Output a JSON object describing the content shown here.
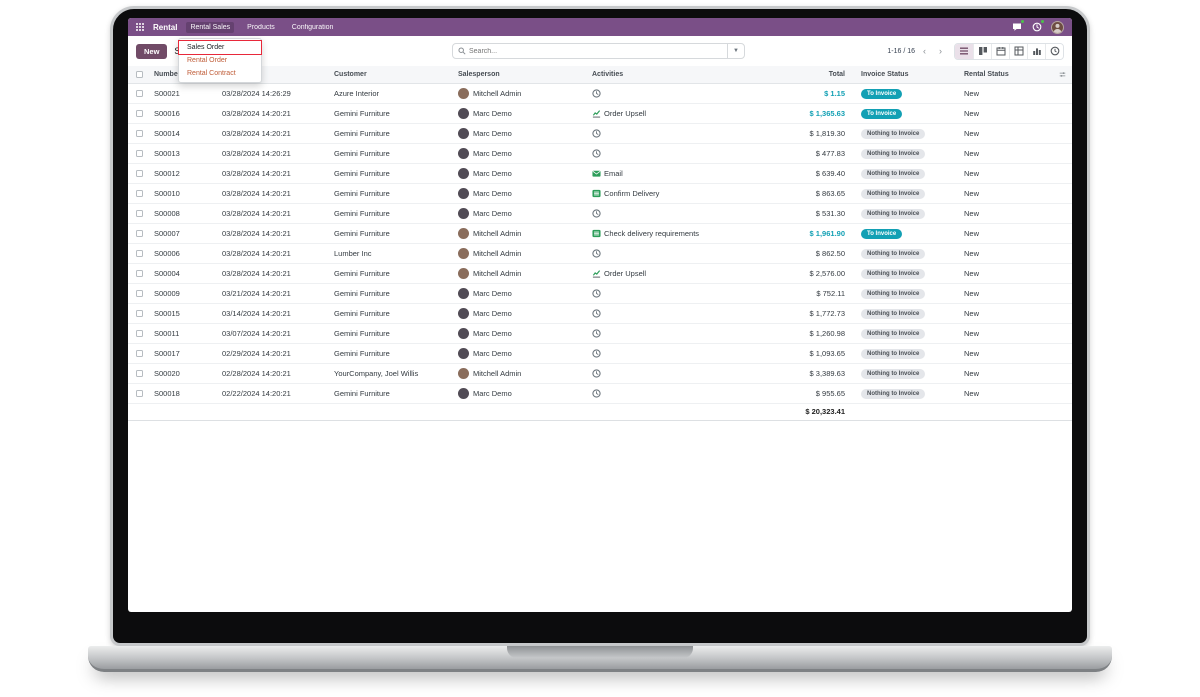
{
  "colors": {
    "menubar_bg": "#7a4f87",
    "accent": "#714b67",
    "to_invoice": "#12a0b4",
    "act_green": "#2e9e5b",
    "hl_red": "#e8283a"
  },
  "menubar": {
    "apps_menu_icon": "grid-icon",
    "app_name": "Rental",
    "menus": [
      {
        "label": "Rental Sales",
        "active": true
      },
      {
        "label": "Products"
      },
      {
        "label": "Configuration"
      }
    ],
    "systray": [
      {
        "icon": "messages-icon",
        "badge": ""
      },
      {
        "icon": "activities-icon",
        "badge": ""
      },
      {
        "icon": "user-avatar"
      }
    ]
  },
  "dropdown": {
    "items": [
      {
        "label": "Sales Order",
        "highlighted": true
      },
      {
        "label": "Rental Order"
      },
      {
        "label": "Rental Contract"
      }
    ]
  },
  "control_panel": {
    "new_button": "New",
    "breadcrumb": "Sales",
    "search": {
      "placeholder": "Search...",
      "icon": "search-icon",
      "caret": "chevron-down-icon"
    },
    "pager": {
      "range": "1-16 / 16",
      "prev": "‹",
      "next": "›"
    },
    "view_switcher": [
      {
        "name": "list-view",
        "active": true
      },
      {
        "name": "kanban-view"
      },
      {
        "name": "calendar-view"
      },
      {
        "name": "pivot-view"
      },
      {
        "name": "graph-view"
      },
      {
        "name": "activity-view"
      }
    ]
  },
  "avatars": {
    "Mitchell Admin": "#8a6d5c",
    "Marc Demo": "#514b55"
  },
  "table": {
    "headers": {
      "number": "Number",
      "date": "",
      "customer": "Customer",
      "salesperson": "Salesperson",
      "activities": "Activities",
      "total": "Total",
      "invoice_status": "Invoice Status",
      "rental_status": "Rental Status"
    },
    "rows": [
      {
        "number": "S00021",
        "date": "03/28/2024 14:26:29",
        "customer": "Azure Interior",
        "salesperson": "Mitchell Admin",
        "activity": {
          "icon": "clock",
          "label": ""
        },
        "total": "$ 1.15",
        "invoice_status": "To Invoice",
        "rental_status": "New"
      },
      {
        "number": "S00016",
        "date": "03/28/2024 14:20:21",
        "customer": "Gemini Furniture",
        "salesperson": "Marc Demo",
        "activity": {
          "icon": "chart",
          "label": "Order Upsell"
        },
        "total": "$ 1,365.63",
        "invoice_status": "To Invoice",
        "rental_status": "New"
      },
      {
        "number": "S00014",
        "date": "03/28/2024 14:20:21",
        "customer": "Gemini Furniture",
        "salesperson": "Marc Demo",
        "activity": {
          "icon": "clock",
          "label": ""
        },
        "total": "$ 1,819.30",
        "invoice_status": "Nothing to Invoice",
        "rental_status": "New"
      },
      {
        "number": "S00013",
        "date": "03/28/2024 14:20:21",
        "customer": "Gemini Furniture",
        "salesperson": "Marc Demo",
        "activity": {
          "icon": "clock",
          "label": ""
        },
        "total": "$ 477.83",
        "invoice_status": "Nothing to Invoice",
        "rental_status": "New"
      },
      {
        "number": "S00012",
        "date": "03/28/2024 14:20:21",
        "customer": "Gemini Furniture",
        "salesperson": "Marc Demo",
        "activity": {
          "icon": "email",
          "label": "Email"
        },
        "total": "$ 639.40",
        "invoice_status": "Nothing to Invoice",
        "rental_status": "New"
      },
      {
        "number": "S00010",
        "date": "03/28/2024 14:20:21",
        "customer": "Gemini Furniture",
        "salesperson": "Marc Demo",
        "activity": {
          "icon": "tasks",
          "label": "Confirm Delivery"
        },
        "total": "$ 863.65",
        "invoice_status": "Nothing to Invoice",
        "rental_status": "New"
      },
      {
        "number": "S00008",
        "date": "03/28/2024 14:20:21",
        "customer": "Gemini Furniture",
        "salesperson": "Marc Demo",
        "activity": {
          "icon": "clock",
          "label": ""
        },
        "total": "$ 531.30",
        "invoice_status": "Nothing to Invoice",
        "rental_status": "New"
      },
      {
        "number": "S00007",
        "date": "03/28/2024 14:20:21",
        "customer": "Gemini Furniture",
        "salesperson": "Mitchell Admin",
        "activity": {
          "icon": "tasks",
          "label": "Check delivery requirements"
        },
        "total": "$ 1,961.90",
        "invoice_status": "To Invoice",
        "rental_status": "New"
      },
      {
        "number": "S00006",
        "date": "03/28/2024 14:20:21",
        "customer": "Lumber Inc",
        "salesperson": "Mitchell Admin",
        "activity": {
          "icon": "clock",
          "label": ""
        },
        "total": "$ 862.50",
        "invoice_status": "Nothing to Invoice",
        "rental_status": "New"
      },
      {
        "number": "S00004",
        "date": "03/28/2024 14:20:21",
        "customer": "Gemini Furniture",
        "salesperson": "Mitchell Admin",
        "activity": {
          "icon": "chart",
          "label": "Order Upsell"
        },
        "total": "$ 2,576.00",
        "invoice_status": "Nothing to Invoice",
        "rental_status": "New"
      },
      {
        "number": "S00009",
        "date": "03/21/2024 14:20:21",
        "customer": "Gemini Furniture",
        "salesperson": "Marc Demo",
        "activity": {
          "icon": "clock",
          "label": ""
        },
        "total": "$ 752.11",
        "invoice_status": "Nothing to Invoice",
        "rental_status": "New"
      },
      {
        "number": "S00015",
        "date": "03/14/2024 14:20:21",
        "customer": "Gemini Furniture",
        "salesperson": "Marc Demo",
        "activity": {
          "icon": "clock",
          "label": ""
        },
        "total": "$ 1,772.73",
        "invoice_status": "Nothing to Invoice",
        "rental_status": "New"
      },
      {
        "number": "S00011",
        "date": "03/07/2024 14:20:21",
        "customer": "Gemini Furniture",
        "salesperson": "Marc Demo",
        "activity": {
          "icon": "clock",
          "label": ""
        },
        "total": "$ 1,260.98",
        "invoice_status": "Nothing to Invoice",
        "rental_status": "New"
      },
      {
        "number": "S00017",
        "date": "02/29/2024 14:20:21",
        "customer": "Gemini Furniture",
        "salesperson": "Marc Demo",
        "activity": {
          "icon": "clock",
          "label": ""
        },
        "total": "$ 1,093.65",
        "invoice_status": "Nothing to Invoice",
        "rental_status": "New"
      },
      {
        "number": "S00020",
        "date": "02/28/2024 14:20:21",
        "customer": "YourCompany, Joel Willis",
        "salesperson": "Mitchell Admin",
        "activity": {
          "icon": "clock",
          "label": ""
        },
        "total": "$ 3,389.63",
        "invoice_status": "Nothing to Invoice",
        "rental_status": "New"
      },
      {
        "number": "S00018",
        "date": "02/22/2024 14:20:21",
        "customer": "Gemini Furniture",
        "salesperson": "Marc Demo",
        "activity": {
          "icon": "clock",
          "label": ""
        },
        "total": "$ 955.65",
        "invoice_status": "Nothing to Invoice",
        "rental_status": "New"
      }
    ],
    "footer": {
      "total": "$ 20,323.41"
    }
  }
}
